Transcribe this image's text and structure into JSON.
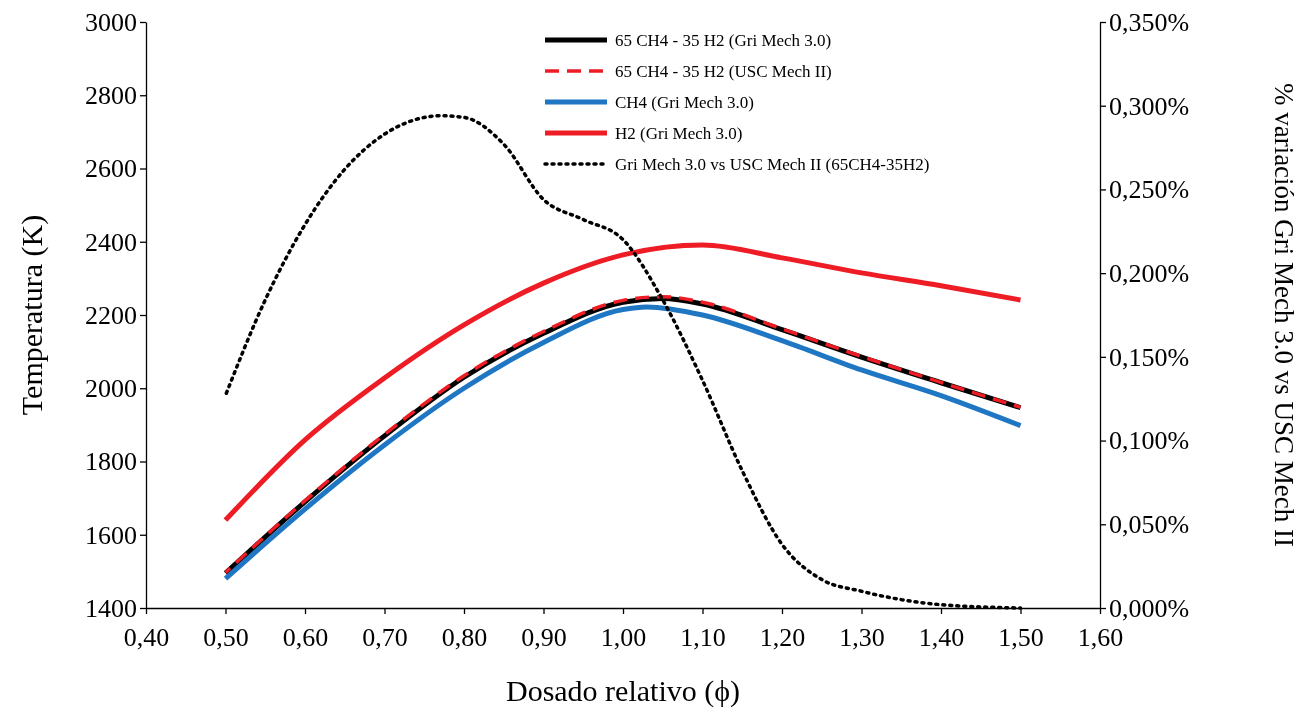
{
  "chart_data": {
    "type": "line",
    "xlabel": "Dosado relativo (ϕ)",
    "ylabel": "Temperatura (K)",
    "y2label": "% variación Gri Mech 3.0 vs USC Mech II",
    "xlim": [
      0.4,
      1.6
    ],
    "xticks": [
      {
        "value": 0.4,
        "label": "0,40"
      },
      {
        "value": 0.5,
        "label": "0,50"
      },
      {
        "value": 0.6,
        "label": "0,60"
      },
      {
        "value": 0.7,
        "label": "0,70"
      },
      {
        "value": 0.8,
        "label": "0,80"
      },
      {
        "value": 0.9,
        "label": "0,90"
      },
      {
        "value": 1.0,
        "label": "1,00"
      },
      {
        "value": 1.1,
        "label": "1,10"
      },
      {
        "value": 1.2,
        "label": "1,20"
      },
      {
        "value": 1.3,
        "label": "1,30"
      },
      {
        "value": 1.4,
        "label": "1,40"
      },
      {
        "value": 1.5,
        "label": "1,50"
      },
      {
        "value": 1.6,
        "label": "1,60"
      }
    ],
    "ylim": [
      1400,
      3000
    ],
    "yticks": [
      1400,
      1600,
      1800,
      2000,
      2200,
      2400,
      2600,
      2800,
      3000
    ],
    "y2lim": [
      0,
      0.35
    ],
    "y2ticks": [
      {
        "value": 0,
        "label": "0,000%"
      },
      {
        "value": 0.05,
        "label": "0,050%"
      },
      {
        "value": 0.1,
        "label": "0,100%"
      },
      {
        "value": 0.15,
        "label": "0,150%"
      },
      {
        "value": 0.2,
        "label": "0,200%"
      },
      {
        "value": 0.25,
        "label": "0,250%"
      },
      {
        "value": 0.3,
        "label": "0,300%"
      },
      {
        "value": 0.35,
        "label": "0,350%"
      }
    ],
    "legend": "top right",
    "grid": false,
    "series": [
      {
        "name": "65 CH4 - 35 H2 (Gri Mech 3.0)",
        "color": "#000000",
        "line_style": "solid",
        "x": [
          0.5,
          0.6,
          0.7,
          0.8,
          0.9,
          1.0,
          1.05,
          1.1,
          1.2,
          1.3,
          1.4,
          1.5
        ],
        "values": [
          1495,
          1690,
          1870,
          2030,
          2150,
          2235,
          2245,
          2230,
          2160,
          2085,
          2015,
          1947
        ]
      },
      {
        "name": "65 CH4 - 35 H2 (USC Mech II)",
        "color": "#ee1c25",
        "line_style": "dashed",
        "x": [
          0.5,
          0.6,
          0.7,
          0.8,
          0.9,
          1.0,
          1.05,
          1.1,
          1.2,
          1.3,
          1.4,
          1.5
        ],
        "values": [
          1497,
          1693,
          1874,
          2034,
          2155,
          2240,
          2250,
          2235,
          2162,
          2087,
          2016,
          1948
        ]
      },
      {
        "name": "CH4 (Gri Mech 3.0)",
        "color": "#1f77c4",
        "line_style": "solid",
        "x": [
          0.5,
          0.6,
          0.7,
          0.8,
          0.9,
          1.0,
          1.03,
          1.1,
          1.2,
          1.3,
          1.4,
          1.5
        ],
        "values": [
          1480,
          1670,
          1845,
          2000,
          2125,
          2215,
          2222,
          2200,
          2130,
          2050,
          1980,
          1898
        ]
      },
      {
        "name": "H2 (Gri Mech 3.0)",
        "color": "#ee1c25",
        "line_style": "solid",
        "x": [
          0.5,
          0.6,
          0.7,
          0.8,
          0.9,
          1.0,
          1.1,
          1.2,
          1.3,
          1.4,
          1.5
        ],
        "values": [
          1640,
          1859,
          2028,
          2173,
          2287,
          2364,
          2391,
          2356,
          2315,
          2280,
          2241
        ]
      },
      {
        "name": "Gri Mech 3.0 vs USC Mech II (65CH4-35H2)",
        "color": "#000000",
        "line_style": "dotted",
        "axis": "y2",
        "x": [
          0.5,
          0.55,
          0.6,
          0.65,
          0.7,
          0.75,
          0.77,
          0.8,
          0.85,
          0.9,
          0.95,
          1.0,
          1.05,
          1.1,
          1.15,
          1.2,
          1.25,
          1.3,
          1.35,
          1.4,
          1.5
        ],
        "values": [
          0.127,
          0.184,
          0.229,
          0.262,
          0.283,
          0.293,
          0.294,
          0.293,
          0.277,
          0.244,
          0.232,
          0.22,
          0.184,
          0.136,
          0.082,
          0.038,
          0.017,
          0.01,
          0.005,
          0.002,
          0.0
        ]
      }
    ]
  }
}
